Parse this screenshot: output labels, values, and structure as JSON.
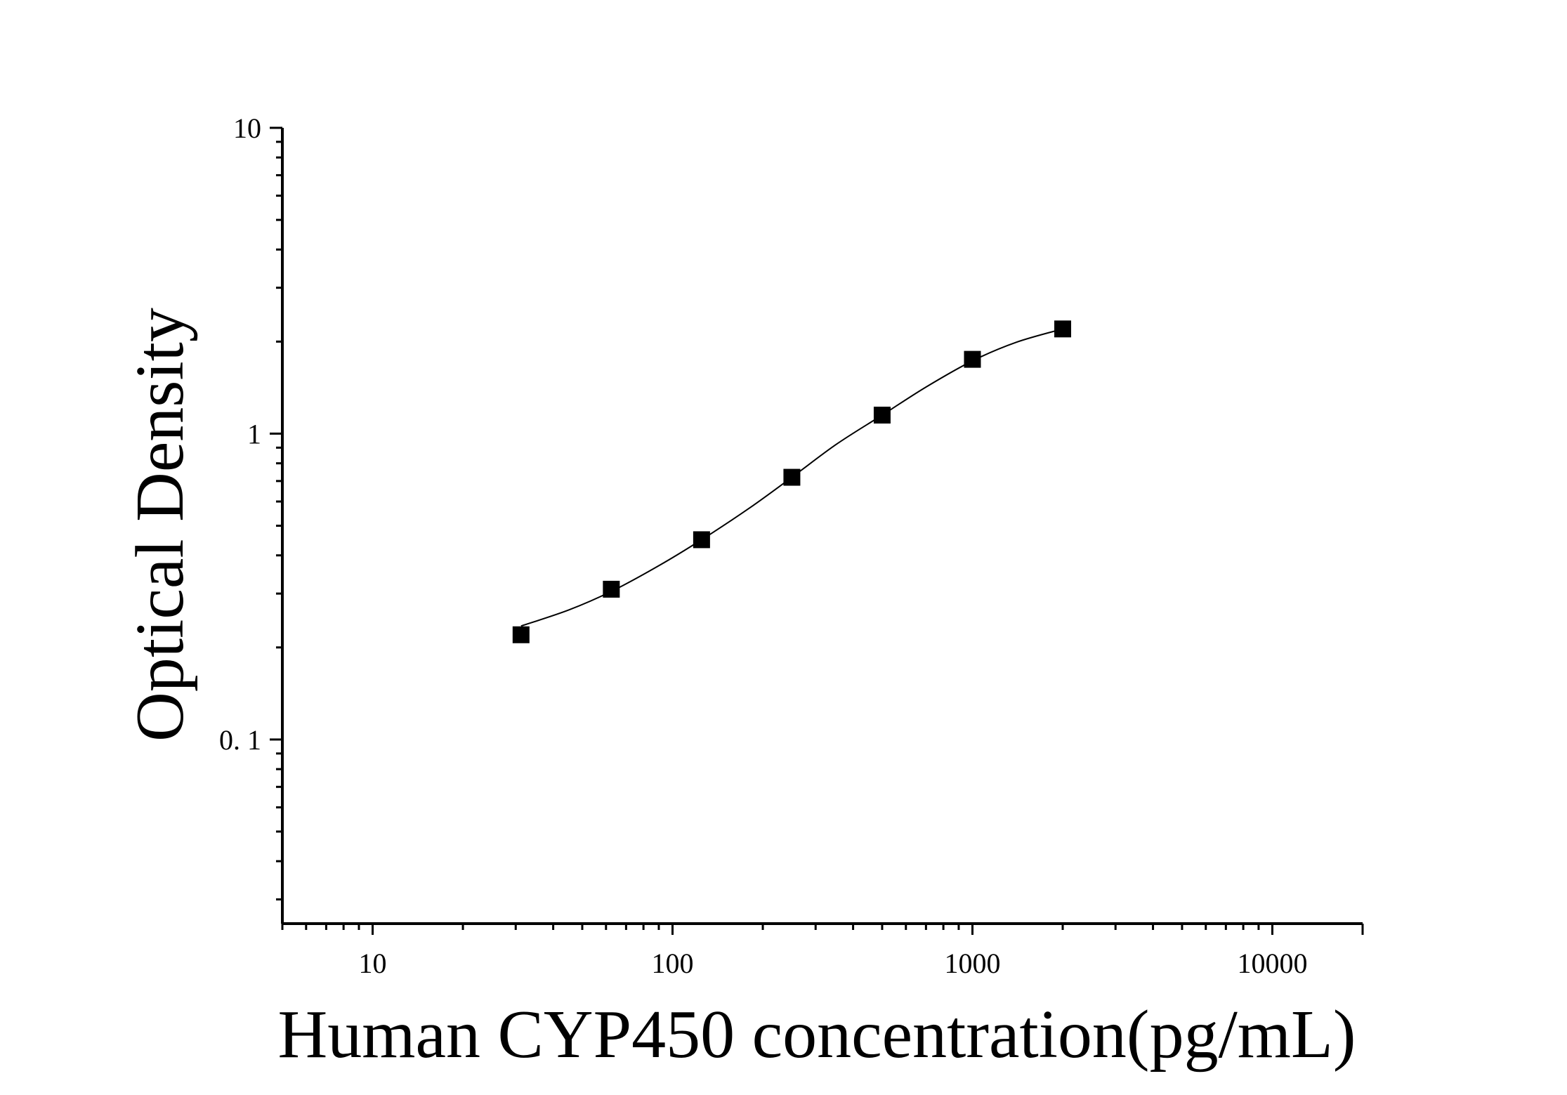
{
  "chart_data": {
    "type": "scatter",
    "xlabel": "Human CYP450 concentration(pg/mL)",
    "ylabel": "Optical Density",
    "x_scale": "log",
    "y_scale": "log",
    "xlim": [
      5,
      20000
    ],
    "ylim": [
      0.025,
      10
    ],
    "x_ticks": [
      {
        "value": 10,
        "label": "10"
      },
      {
        "value": 100,
        "label": "100"
      },
      {
        "value": 1000,
        "label": "1000"
      },
      {
        "value": 10000,
        "label": "10000"
      }
    ],
    "y_ticks": [
      {
        "value": 10,
        "label": "10"
      },
      {
        "value": 1,
        "label": "1"
      },
      {
        "value": 0.1,
        "label": "0. 1"
      }
    ],
    "grid": false,
    "legend": "none",
    "marker": "square",
    "colors": {
      "marker": "#000000",
      "curve": "#000000",
      "axis": "#000000"
    },
    "series": [
      {
        "x": [
          31.25,
          62.5,
          125,
          250,
          500,
          1000,
          2000
        ],
        "y": [
          0.22,
          0.31,
          0.45,
          0.72,
          1.15,
          1.75,
          2.2
        ]
      }
    ],
    "fit_curve": {
      "x_range": [
        31.25,
        2000
      ],
      "x": [
        31.25,
        45,
        62.5,
        90,
        125,
        180,
        250,
        350,
        500,
        700,
        1000,
        1400,
        2000
      ],
      "y": [
        0.235,
        0.265,
        0.305,
        0.37,
        0.45,
        0.57,
        0.72,
        0.92,
        1.15,
        1.42,
        1.73,
        1.99,
        2.2
      ]
    }
  }
}
